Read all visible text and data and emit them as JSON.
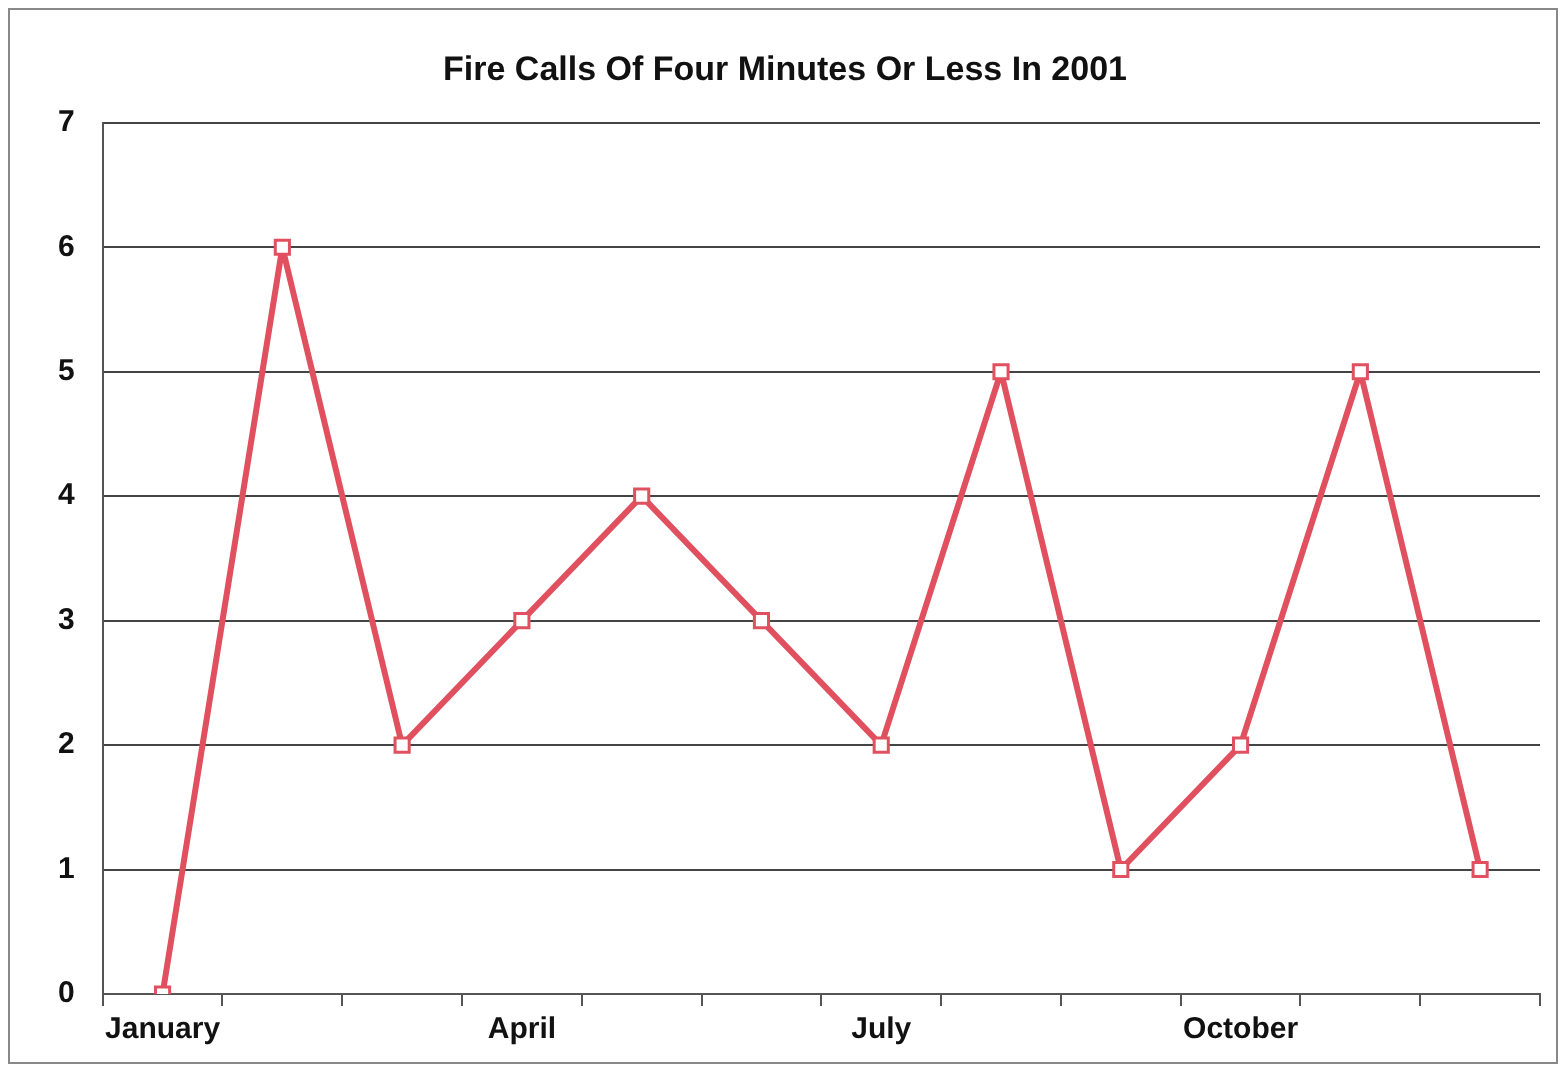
{
  "chart_data": {
    "type": "line",
    "title": "Fire Calls Of Four Minutes Or Less In 2001",
    "categories": [
      "January",
      null,
      null,
      "April",
      null,
      null,
      "July",
      null,
      null,
      "October",
      null,
      null
    ],
    "series": [
      {
        "color": "#e0505f",
        "values": [
          0,
          6,
          2,
          3,
          4,
          3,
          2,
          5,
          1,
          2,
          5,
          1
        ]
      }
    ],
    "ylim": [
      0,
      7
    ],
    "yticks": [
      0,
      1,
      2,
      3,
      4,
      5,
      6,
      7
    ],
    "grid": "y",
    "legend": false,
    "marker": "square",
    "line_style": "solid"
  }
}
